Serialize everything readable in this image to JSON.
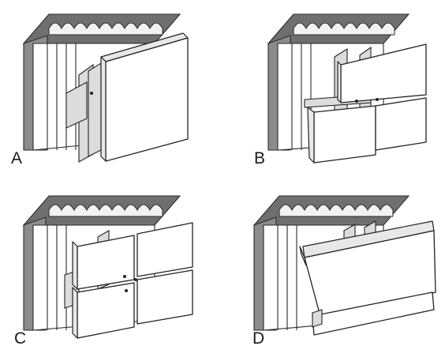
{
  "labels": {
    "a": "A",
    "b": "B",
    "c": "C",
    "d": "D"
  }
}
